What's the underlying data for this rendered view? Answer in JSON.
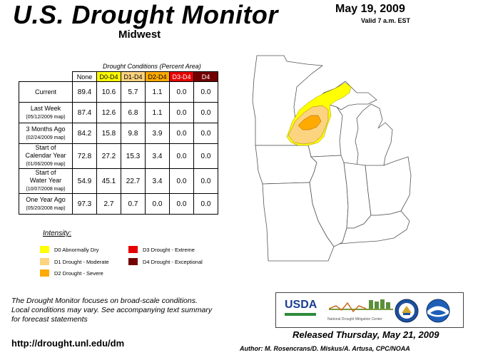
{
  "header": {
    "title": "U.S. Drought Monitor",
    "region": "Midwest",
    "date": "May 19, 2009",
    "valid": "Valid 7 a.m. EST"
  },
  "table": {
    "caption": "Drought Conditions (Percent Area)",
    "columns": [
      {
        "label": "None",
        "bg": "#ffffff",
        "color": "#000000"
      },
      {
        "label": "D0-D4",
        "bg": "#ffff00",
        "color": "#000000"
      },
      {
        "label": "D1-D4",
        "bg": "#fcd37f",
        "color": "#000000"
      },
      {
        "label": "D2-D4",
        "bg": "#ffaa00",
        "color": "#000000"
      },
      {
        "label": "D3-D4",
        "bg": "#e60000",
        "color": "#ffffff"
      },
      {
        "label": "D4",
        "bg": "#730000",
        "color": "#ffffff"
      }
    ],
    "rows": [
      {
        "label": [
          "Current"
        ],
        "sub": "",
        "values": [
          "89.4",
          "10.6",
          "5.7",
          "1.1",
          "0.0",
          "0.0"
        ]
      },
      {
        "label": [
          "Last Week"
        ],
        "sub": "(05/12/2009 map)",
        "values": [
          "87.4",
          "12.6",
          "6.8",
          "1.1",
          "0.0",
          "0.0"
        ]
      },
      {
        "label": [
          "3 Months Ago"
        ],
        "sub": "(02/24/2009 map)",
        "values": [
          "84.2",
          "15.8",
          "9.8",
          "3.9",
          "0.0",
          "0.0"
        ]
      },
      {
        "label": [
          "Start of",
          "Calendar Year"
        ],
        "sub": "(01/06/2009 map)",
        "values": [
          "72.8",
          "27.2",
          "15.3",
          "3.4",
          "0.0",
          "0.0"
        ]
      },
      {
        "label": [
          "Start of",
          "Water Year"
        ],
        "sub": "(10/07/2008 map)",
        "values": [
          "54.9",
          "45.1",
          "22.7",
          "3.4",
          "0.0",
          "0.0"
        ]
      },
      {
        "label": [
          "One Year Ago"
        ],
        "sub": "(05/20/2008 map)",
        "values": [
          "97.3",
          "2.7",
          "0.7",
          "0.0",
          "0.0",
          "0.0"
        ]
      }
    ]
  },
  "legend": {
    "title": "Intensity:",
    "items": [
      {
        "label": "D0 Abnormally Dry",
        "color": "#ffff00"
      },
      {
        "label": "D1 Drought - Moderate",
        "color": "#fcd37f"
      },
      {
        "label": "D2 Drought - Severe",
        "color": "#ffaa00"
      },
      {
        "label": "D3 Drought - Extreme",
        "color": "#e60000"
      },
      {
        "label": "D4 Drought - Exceptional",
        "color": "#730000"
      }
    ]
  },
  "footer": {
    "focus_lines": [
      "The Drought Monitor focuses on broad-scale conditions.",
      "Local conditions may vary. See accompanying text summary",
      "for forecast statements"
    ],
    "url": "http://drought.unl.edu/dm",
    "released": "Released Thursday, May 21, 2009",
    "author": "Author: M. Rosencrans/D. Miskus/A. Artusa, CPC/NOAA"
  },
  "logos": {
    "usda": "USDA",
    "ndmc": "National Drought Mitigation Center"
  },
  "map": {
    "colors": {
      "state_fill": "#ffffff",
      "border": "#555555",
      "d0": "#ffff00",
      "d1": "#fcd37f",
      "d2": "#ffaa00"
    }
  }
}
